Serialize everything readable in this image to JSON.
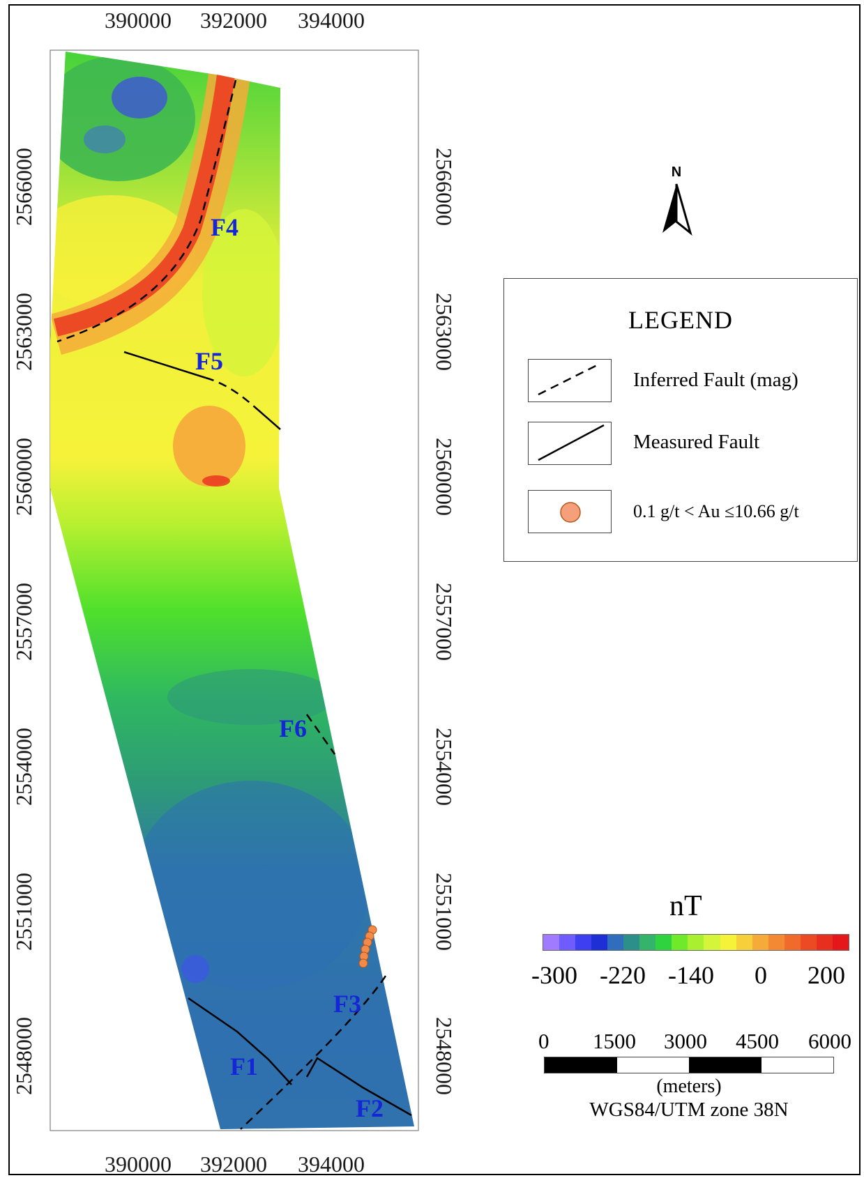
{
  "map": {
    "x_ticks": [
      "390000",
      "392000",
      "394000"
    ],
    "y_ticks": [
      "2566000",
      "2563000",
      "2560000",
      "2557000",
      "2554000",
      "2551000",
      "2548000"
    ],
    "fault_labels": [
      "F1",
      "F2",
      "F3",
      "F4",
      "F5",
      "F6"
    ]
  },
  "legend": {
    "title": "LEGEND",
    "items": [
      {
        "label": "Inferred Fault (mag)",
        "symbol": "dashed-line"
      },
      {
        "label": "Measured Fault",
        "symbol": "solid-line"
      },
      {
        "label": "0.1 g/t < Au  ≤10.66 g/t",
        "symbol": "orange-circle"
      }
    ]
  },
  "north_arrow": {
    "letter": "N"
  },
  "colorbar": {
    "title": "nT",
    "labels": [
      "-300",
      "-220",
      "-140",
      "0",
      "200"
    ],
    "colors": [
      "#a07aff",
      "#6f5cff",
      "#3f3ff2",
      "#1f2fd6",
      "#2f6dbd",
      "#2d8f8a",
      "#34b36a",
      "#2fd23f",
      "#6fea2a",
      "#a8f030",
      "#d4f53a",
      "#f6f23a",
      "#f6cf3a",
      "#f5ab3a",
      "#f38a33",
      "#f06a2c",
      "#ec4a25",
      "#e82e1e",
      "#e5171a"
    ]
  },
  "scale_bar": {
    "labels": [
      "0",
      "1500",
      "3000",
      "4500",
      "6000"
    ],
    "units": "(meters)",
    "projection": "WGS84/UTM zone 38N"
  },
  "colors": {
    "fault_label": "#1526d6",
    "gold_point": "#f28a4a"
  }
}
